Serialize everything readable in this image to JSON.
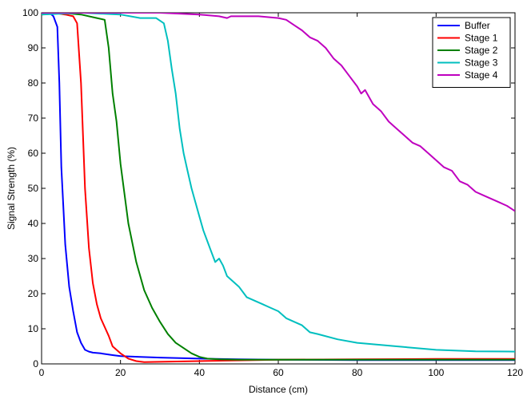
{
  "chart_data": {
    "type": "line",
    "title": "",
    "xlabel": "Distance (cm)",
    "ylabel": "Signal Strength (%)",
    "xlim": [
      0,
      120
    ],
    "ylim": [
      0,
      100
    ],
    "xticks": [
      0,
      20,
      40,
      60,
      80,
      100,
      120
    ],
    "yticks": [
      0,
      10,
      20,
      30,
      40,
      50,
      60,
      70,
      80,
      90,
      100
    ],
    "grid": false,
    "legend_position": "top-right",
    "series": [
      {
        "name": "Buffer",
        "color": "#0000ff",
        "x": [
          0,
          2,
          3,
          4,
          4.5,
          5,
          6,
          7,
          8,
          9,
          10,
          11,
          12,
          13,
          15,
          18,
          20,
          25,
          30,
          40,
          50,
          60,
          80,
          100,
          120
        ],
        "y": [
          99.5,
          100,
          99,
          96,
          80,
          56,
          34,
          22,
          15,
          9,
          6,
          4,
          3.5,
          3.2,
          3,
          2.5,
          2.2,
          2,
          1.8,
          1.5,
          1.3,
          1.2,
          1.1,
          1.1,
          1.1
        ]
      },
      {
        "name": "Stage 1",
        "color": "#ff0000",
        "x": [
          0,
          3,
          6,
          8,
          9,
          10,
          11,
          12,
          13,
          14,
          15,
          17,
          18,
          20,
          22,
          24,
          26,
          30,
          40,
          60,
          80,
          100,
          120
        ],
        "y": [
          99.5,
          100,
          99.5,
          99,
          97,
          80,
          50,
          33,
          23,
          17,
          13,
          8,
          5,
          3,
          1.5,
          0.8,
          0.5,
          0.6,
          0.8,
          1.2,
          1.3,
          1.4,
          1.4
        ]
      },
      {
        "name": "Stage 2",
        "color": "#008000",
        "x": [
          0,
          5,
          10,
          14,
          16,
          17,
          18,
          19,
          20,
          22,
          24,
          26,
          28,
          30,
          32,
          34,
          36,
          38,
          40,
          42,
          45,
          50,
          60,
          80,
          100,
          120
        ],
        "y": [
          99.5,
          100,
          99.5,
          98.5,
          98,
          90,
          77,
          69,
          57,
          40,
          29,
          21,
          16,
          12,
          8.5,
          6,
          4.5,
          3,
          2,
          1.5,
          1.3,
          1.2,
          1.2,
          1.2,
          1.2,
          1.2
        ]
      },
      {
        "name": "Stage 3",
        "color": "#00bfbf",
        "x": [
          0,
          10,
          20,
          25,
          29,
          31,
          32,
          33,
          34,
          35,
          36,
          37,
          38,
          39,
          40,
          41,
          42,
          43,
          44,
          45,
          46,
          47,
          48,
          50,
          52,
          54,
          56,
          58,
          60,
          62,
          64,
          66,
          68,
          70,
          75,
          80,
          90,
          100,
          110,
          120
        ],
        "y": [
          99.5,
          100,
          99.5,
          98.5,
          98.5,
          97,
          92,
          84,
          77,
          67,
          60,
          55,
          50,
          46,
          42,
          38,
          35,
          32,
          29,
          30,
          28,
          25,
          24,
          22,
          19,
          18,
          17,
          16,
          15,
          13,
          12,
          11,
          9,
          8.5,
          7,
          6,
          5,
          4,
          3.6,
          3.5
        ]
      },
      {
        "name": "Stage 4",
        "color": "#bf00bf",
        "x": [
          0,
          20,
          30,
          40,
          45,
          47,
          48,
          50,
          55,
          60,
          62,
          64,
          66,
          68,
          70,
          72,
          74,
          76,
          78,
          80,
          81,
          82,
          84,
          86,
          88,
          90,
          92,
          94,
          96,
          98,
          100,
          102,
          104,
          106,
          108,
          110,
          112,
          114,
          116,
          118,
          120
        ],
        "y": [
          100,
          100,
          100,
          99.5,
          99,
          98.5,
          99,
          99,
          99,
          98.5,
          98,
          96.5,
          95,
          93,
          92,
          90,
          87,
          85,
          82,
          79,
          77,
          78,
          74,
          72,
          69,
          67,
          65,
          63,
          62,
          60,
          58,
          56,
          55,
          52,
          51,
          49,
          48,
          47,
          46,
          45,
          43.5
        ]
      }
    ]
  }
}
